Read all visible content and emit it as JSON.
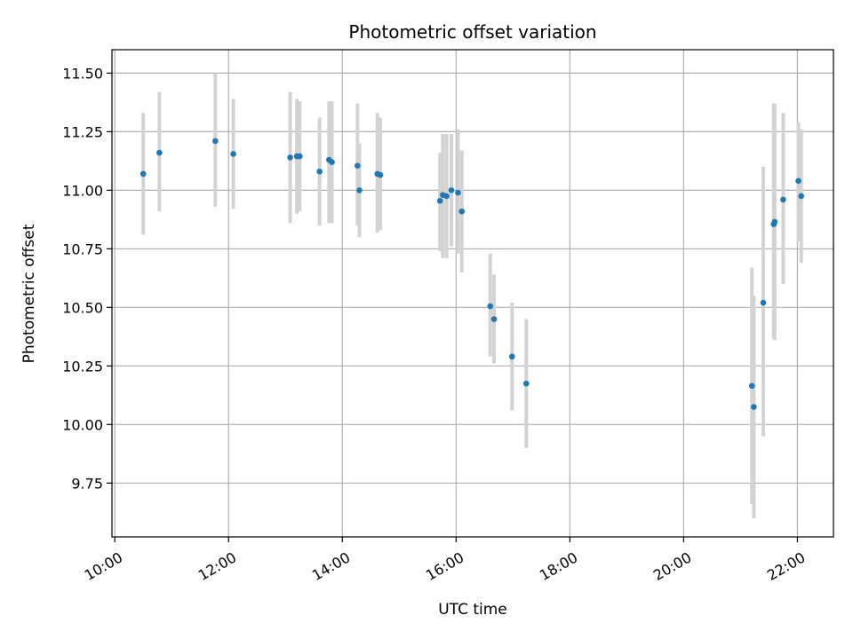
{
  "chart_data": {
    "type": "scatter",
    "title": "Photometric offset variation",
    "xlabel": "UTC time",
    "ylabel": "Photometric offset",
    "x_unit": "hours UTC",
    "xlim": [
      "09:57",
      "22:38"
    ],
    "ylim": [
      9.52,
      11.6
    ],
    "xticks": [
      "10:00",
      "12:00",
      "14:00",
      "16:00",
      "18:00",
      "20:00",
      "22:00"
    ],
    "yticks": [
      "9.75",
      "10.00",
      "10.25",
      "10.50",
      "10.75",
      "11.00",
      "11.25",
      "11.50"
    ],
    "grid": true,
    "colors": {
      "points": "#1f77b4",
      "error_bars": "#d3d3d3"
    },
    "points": [
      {
        "time": "10:30",
        "y": 11.07,
        "low": 10.81,
        "high": 11.33
      },
      {
        "time": "10:47",
        "y": 11.16,
        "low": 10.91,
        "high": 11.42
      },
      {
        "time": "11:46",
        "y": 11.21,
        "low": 10.93,
        "high": 11.5
      },
      {
        "time": "12:05",
        "y": 11.155,
        "low": 10.92,
        "high": 11.39
      },
      {
        "time": "13:05",
        "y": 11.14,
        "low": 10.86,
        "high": 11.42
      },
      {
        "time": "13:12",
        "y": 11.145,
        "low": 10.9,
        "high": 11.39
      },
      {
        "time": "13:15",
        "y": 11.145,
        "low": 10.91,
        "high": 11.38
      },
      {
        "time": "13:36",
        "y": 11.08,
        "low": 10.85,
        "high": 11.31
      },
      {
        "time": "13:46",
        "y": 11.13,
        "low": 10.86,
        "high": 11.38
      },
      {
        "time": "13:49",
        "y": 11.12,
        "low": 10.86,
        "high": 11.38
      },
      {
        "time": "14:16",
        "y": 11.105,
        "low": 10.85,
        "high": 11.37
      },
      {
        "time": "14:18",
        "y": 11.0,
        "low": 10.8,
        "high": 11.2
      },
      {
        "time": "14:37",
        "y": 11.07,
        "low": 10.82,
        "high": 11.33
      },
      {
        "time": "14:40",
        "y": 11.065,
        "low": 10.83,
        "high": 11.31
      },
      {
        "time": "15:43",
        "y": 10.955,
        "low": 10.74,
        "high": 11.16
      },
      {
        "time": "15:46",
        "y": 10.98,
        "low": 10.71,
        "high": 11.24
      },
      {
        "time": "15:50",
        "y": 10.975,
        "low": 10.71,
        "high": 11.24
      },
      {
        "time": "15:55",
        "y": 11.0,
        "low": 10.76,
        "high": 11.24
      },
      {
        "time": "16:02",
        "y": 10.99,
        "low": 10.73,
        "high": 11.26
      },
      {
        "time": "16:06",
        "y": 10.91,
        "low": 10.65,
        "high": 11.17
      },
      {
        "time": "16:36",
        "y": 10.505,
        "low": 10.29,
        "high": 10.73
      },
      {
        "time": "16:40",
        "y": 10.45,
        "low": 10.26,
        "high": 10.64
      },
      {
        "time": "16:59",
        "y": 10.29,
        "low": 10.06,
        "high": 10.52
      },
      {
        "time": "17:14",
        "y": 10.175,
        "low": 9.9,
        "high": 10.45
      },
      {
        "time": "21:12",
        "y": 10.165,
        "low": 9.66,
        "high": 10.67
      },
      {
        "time": "21:14",
        "y": 10.075,
        "low": 9.6,
        "high": 10.55
      },
      {
        "time": "21:24",
        "y": 10.52,
        "low": 9.95,
        "high": 11.1
      },
      {
        "time": "21:35",
        "y": 10.855,
        "low": 10.37,
        "high": 11.37
      },
      {
        "time": "21:36",
        "y": 10.865,
        "low": 10.36,
        "high": 11.37
      },
      {
        "time": "21:45",
        "y": 10.96,
        "low": 10.6,
        "high": 11.33
      },
      {
        "time": "22:01",
        "y": 11.04,
        "low": 10.78,
        "high": 11.29
      },
      {
        "time": "22:04",
        "y": 10.975,
        "low": 10.69,
        "high": 11.26
      }
    ]
  }
}
